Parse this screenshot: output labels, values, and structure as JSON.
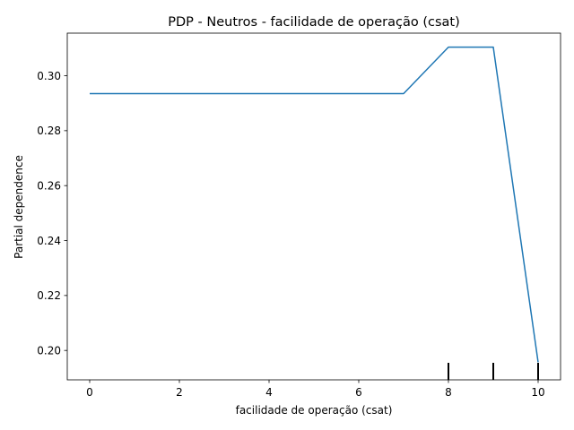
{
  "chart_data": {
    "type": "line",
    "title": "PDP - Neutros - facilidade de operação (csat)",
    "xlabel": "facilidade de operação (csat)",
    "ylabel": "Partial dependence",
    "xlim": [
      -0.5,
      10.5
    ],
    "ylim": [
      0.1893,
      0.3155
    ],
    "xticks": [
      0,
      2,
      4,
      6,
      8,
      10
    ],
    "xtick_labels": [
      "0",
      "2",
      "4",
      "6",
      "8",
      "10"
    ],
    "yticks": [
      0.2,
      0.22,
      0.24,
      0.26,
      0.28,
      0.3
    ],
    "ytick_labels": [
      "0.20",
      "0.22",
      "0.24",
      "0.26",
      "0.28",
      "0.30"
    ],
    "grid": false,
    "series": [
      {
        "color": "#1f77b4",
        "x": [
          0,
          1,
          2,
          3,
          4,
          5,
          6,
          7,
          8,
          9,
          10
        ],
        "y": [
          0.2935,
          0.2935,
          0.2935,
          0.2935,
          0.2935,
          0.2935,
          0.2935,
          0.2935,
          0.3104,
          0.3104,
          0.1957
        ]
      }
    ],
    "rug": {
      "color": "#000000",
      "x": [
        8,
        9,
        10
      ],
      "y_bottom": 0.1893,
      "y_top": 0.1955
    }
  }
}
